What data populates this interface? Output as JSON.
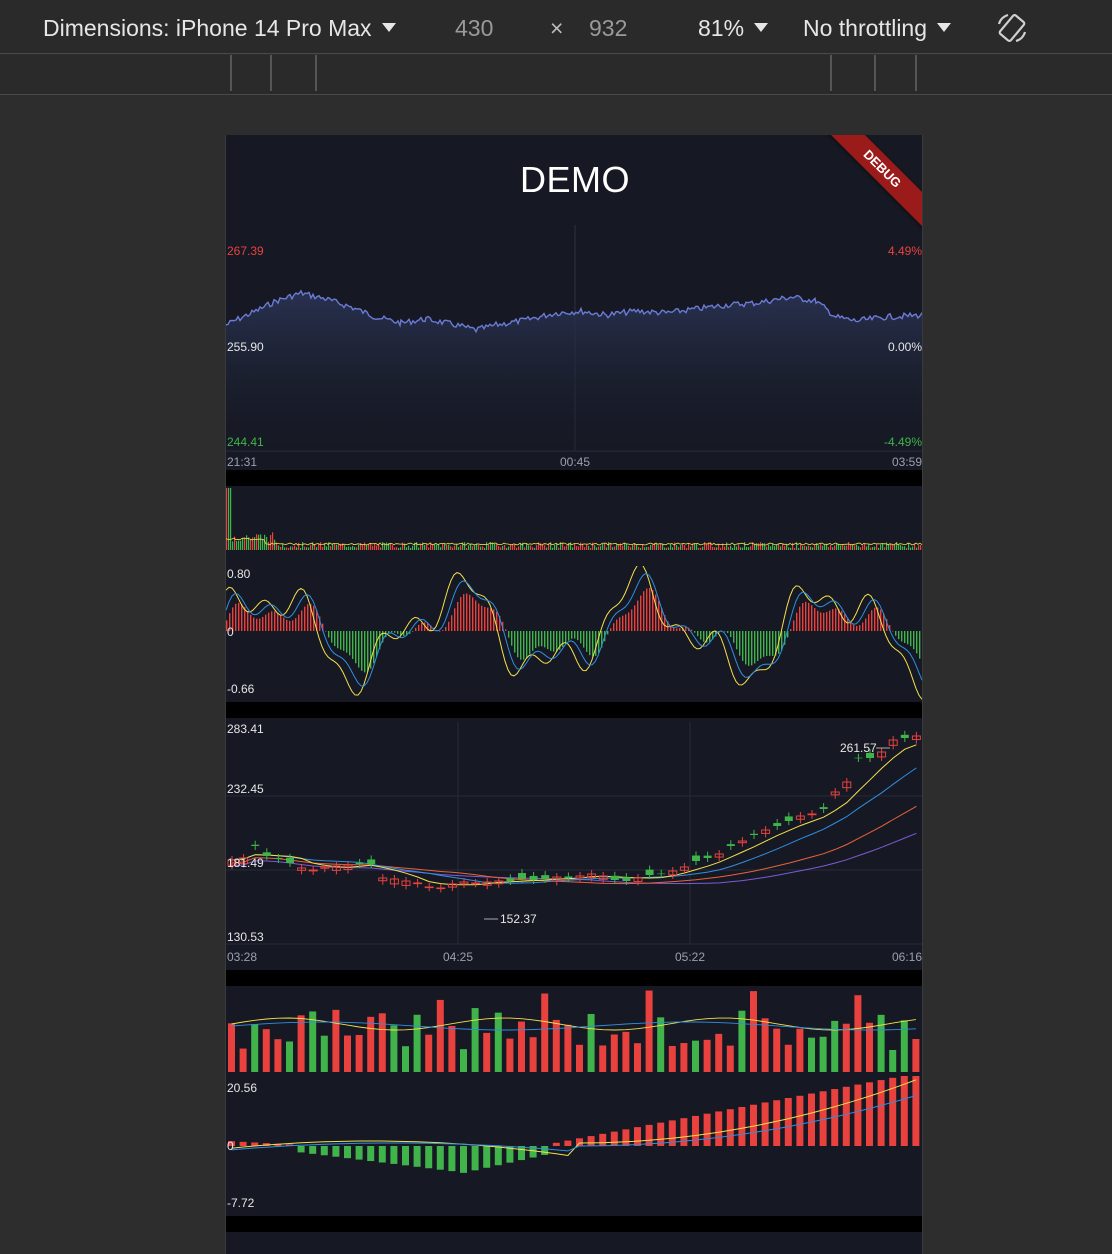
{
  "devtools": {
    "dimensions_label": "Dimensions: iPhone 14 Pro Max",
    "width": "430",
    "times": "×",
    "height": "932",
    "zoom": "81%",
    "throttling": "No throttling",
    "rotate_icon": "rotate-device-icon"
  },
  "app": {
    "title": "DEMO",
    "debug_banner": "DEBUG"
  },
  "colors": {
    "up": "#e8413e",
    "down": "#40b34a",
    "line": "#6b7bd6",
    "yellow": "#f4e04d",
    "blue": "#2f8fe0",
    "orange": "#e8633a",
    "purple": "#7b5bd6"
  },
  "timeline": {
    "price_max": "267.39",
    "price_mid": "255.90",
    "price_min": "244.41",
    "pct_max": "4.49%",
    "pct_mid": "0.00%",
    "pct_min": "-4.49%",
    "times": [
      "21:31",
      "00:45",
      "03:59"
    ]
  },
  "timeline_macd": {
    "max": "0.80",
    "zero": "0",
    "min": "-0.66"
  },
  "kline": {
    "y_labels": [
      "283.41",
      "232.45",
      "181.49",
      "130.53"
    ],
    "times": [
      "03:28",
      "04:25",
      "05:22",
      "06:16"
    ],
    "high_label": "261.57",
    "low_label": "152.37"
  },
  "kline_macd": {
    "max": "20.56",
    "zero": "0",
    "min": "-7.72"
  }
}
